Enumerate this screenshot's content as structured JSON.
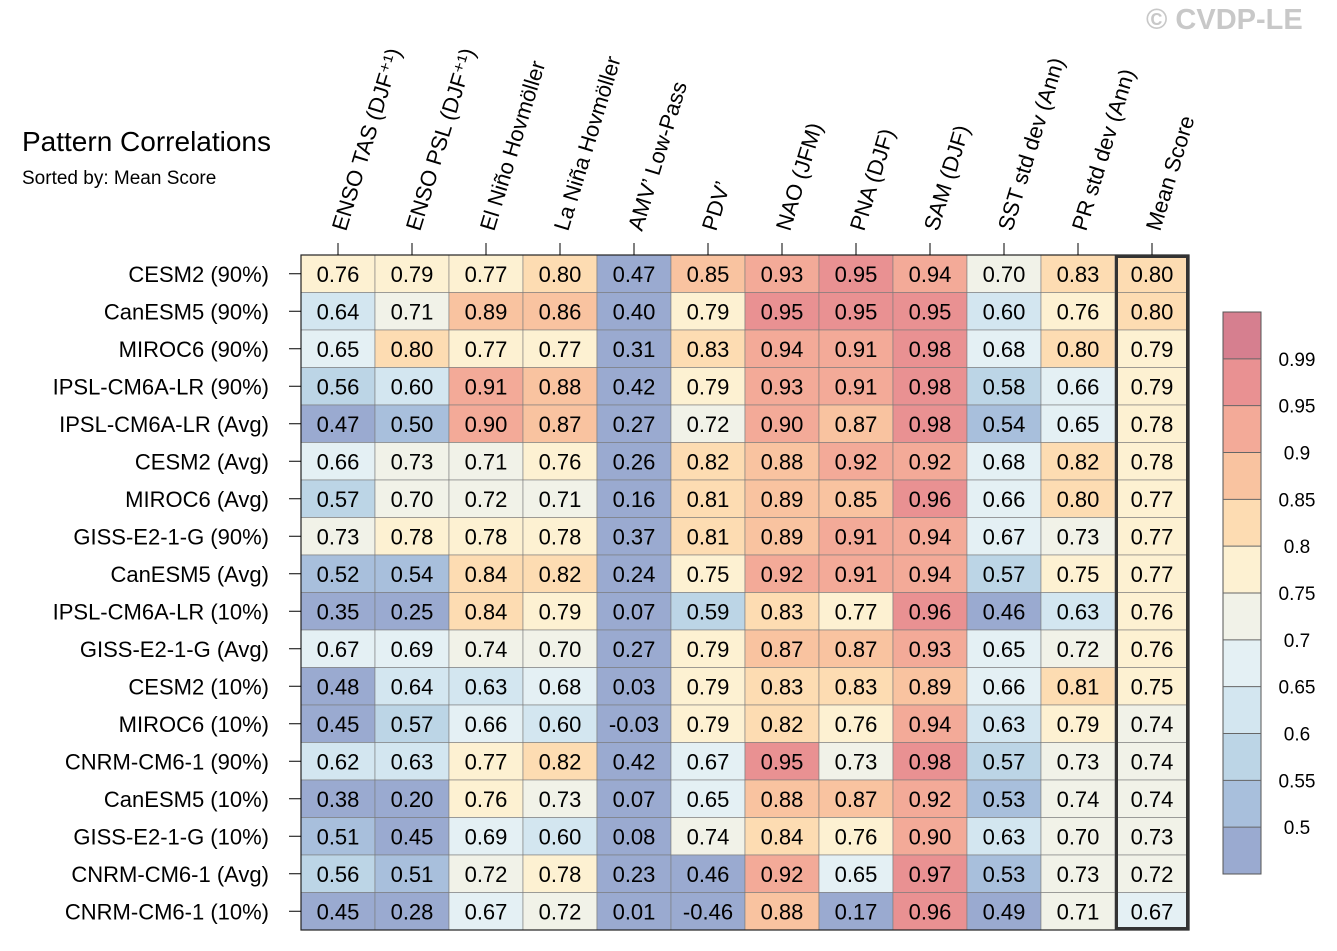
{
  "copyright": "© CVDP-LE",
  "chart_data": {
    "type": "heatmap",
    "title": "Pattern Correlations",
    "subtitle": "Sorted by: Mean Score",
    "columns": [
      "ENSO TAS (DJF⁺¹)",
      "ENSO PSL (DJF⁺¹)",
      "El Niño Hovmöller",
      "La Niña Hovmöller",
      "AMV’ Low-Pass",
      "PDV’",
      "NAO (JFM)",
      "PNA (DJF)",
      "SAM (DJF)",
      "SST std dev (Ann)",
      "PR std dev (Ann)",
      "Mean Score"
    ],
    "rows": [
      "CESM2 (90%)",
      "CanESM5 (90%)",
      "MIROC6 (90%)",
      "IPSL-CM6A-LR (90%)",
      "IPSL-CM6A-LR (Avg)",
      "CESM2 (Avg)",
      "MIROC6 (Avg)",
      "GISS-E2-1-G (90%)",
      "CanESM5 (Avg)",
      "IPSL-CM6A-LR (10%)",
      "GISS-E2-1-G (Avg)",
      "CESM2 (10%)",
      "MIROC6 (10%)",
      "CNRM-CM6-1 (90%)",
      "CanESM5 (10%)",
      "GISS-E2-1-G (10%)",
      "CNRM-CM6-1 (Avg)",
      "CNRM-CM6-1 (10%)"
    ],
    "values": [
      [
        0.76,
        0.79,
        0.77,
        0.8,
        0.47,
        0.85,
        0.93,
        0.95,
        0.94,
        0.7,
        0.83,
        0.8
      ],
      [
        0.64,
        0.71,
        0.89,
        0.86,
        0.4,
        0.79,
        0.95,
        0.95,
        0.95,
        0.6,
        0.76,
        0.8
      ],
      [
        0.65,
        0.8,
        0.77,
        0.77,
        0.31,
        0.83,
        0.94,
        0.91,
        0.98,
        0.68,
        0.8,
        0.79
      ],
      [
        0.56,
        0.6,
        0.91,
        0.88,
        0.42,
        0.79,
        0.93,
        0.91,
        0.98,
        0.58,
        0.66,
        0.79
      ],
      [
        0.47,
        0.5,
        0.9,
        0.87,
        0.27,
        0.72,
        0.9,
        0.87,
        0.98,
        0.54,
        0.65,
        0.78
      ],
      [
        0.66,
        0.73,
        0.71,
        0.76,
        0.26,
        0.82,
        0.88,
        0.92,
        0.92,
        0.68,
        0.82,
        0.78
      ],
      [
        0.57,
        0.7,
        0.72,
        0.71,
        0.16,
        0.81,
        0.89,
        0.85,
        0.96,
        0.66,
        0.8,
        0.77
      ],
      [
        0.73,
        0.78,
        0.78,
        0.78,
        0.37,
        0.81,
        0.89,
        0.91,
        0.94,
        0.67,
        0.73,
        0.77
      ],
      [
        0.52,
        0.54,
        0.84,
        0.82,
        0.24,
        0.75,
        0.92,
        0.91,
        0.94,
        0.57,
        0.75,
        0.77
      ],
      [
        0.35,
        0.25,
        0.84,
        0.79,
        0.07,
        0.59,
        0.83,
        0.77,
        0.96,
        0.46,
        0.63,
        0.76
      ],
      [
        0.67,
        0.69,
        0.74,
        0.7,
        0.27,
        0.79,
        0.87,
        0.87,
        0.93,
        0.65,
        0.72,
        0.76
      ],
      [
        0.48,
        0.64,
        0.63,
        0.68,
        0.03,
        0.79,
        0.83,
        0.83,
        0.89,
        0.66,
        0.81,
        0.75
      ],
      [
        0.45,
        0.57,
        0.66,
        0.6,
        -0.03,
        0.79,
        0.82,
        0.76,
        0.94,
        0.63,
        0.79,
        0.74
      ],
      [
        0.62,
        0.63,
        0.77,
        0.82,
        0.42,
        0.67,
        0.95,
        0.73,
        0.98,
        0.57,
        0.73,
        0.74
      ],
      [
        0.38,
        0.2,
        0.76,
        0.73,
        0.07,
        0.65,
        0.88,
        0.87,
        0.92,
        0.53,
        0.74,
        0.74
      ],
      [
        0.51,
        0.45,
        0.69,
        0.6,
        0.08,
        0.74,
        0.84,
        0.76,
        0.9,
        0.63,
        0.7,
        0.73
      ],
      [
        0.56,
        0.51,
        0.72,
        0.78,
        0.23,
        0.46,
        0.92,
        0.65,
        0.97,
        0.53,
        0.73,
        0.72
      ],
      [
        0.45,
        0.28,
        0.67,
        0.72,
        0.01,
        -0.46,
        0.88,
        0.17,
        0.96,
        0.49,
        0.71,
        0.67
      ]
    ],
    "highlighted_column": "Mean Score",
    "colorbar": {
      "tick_labels": [
        "0.99",
        "0.95",
        "0.9",
        "0.85",
        "0.8",
        "0.75",
        "0.7",
        "0.65",
        "0.6",
        "0.55",
        "0.5"
      ],
      "levels": [
        0.5,
        0.55,
        0.6,
        0.65,
        0.7,
        0.75,
        0.8,
        0.85,
        0.9,
        0.95,
        0.99
      ],
      "colors": [
        "#9aaad0",
        "#a8bfdc",
        "#bcd5e6",
        "#d3e6f0",
        "#e4f0f4",
        "#f1f2e8",
        "#fdf1d2",
        "#fddcb2",
        "#f9c3a0",
        "#f3aa98",
        "#e99192",
        "#d67f8f"
      ]
    }
  }
}
